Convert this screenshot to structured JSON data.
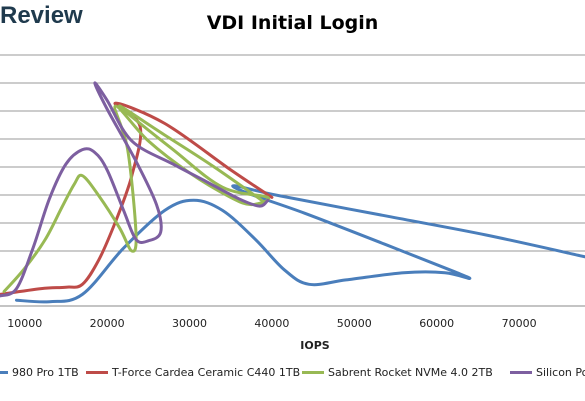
{
  "logo": {
    "text": "Review"
  },
  "chart_data": {
    "type": "line",
    "title": "VDI Initial Login",
    "xlabel": "IOPS",
    "ylabel": "",
    "xlim": [
      7000,
      78000
    ],
    "x_ticks": [
      10000,
      20000,
      30000,
      40000,
      50000,
      60000,
      70000
    ],
    "x_tick_labels": [
      "10000",
      "20000",
      "30000",
      "40000",
      "50000",
      "60000",
      "70000"
    ],
    "y_gridlines": 8,
    "grid": true,
    "legend_position": "bottom",
    "series": [
      {
        "name": "980 Pro 1TB",
        "color": "#4a7ebb",
        "points": [
          [
            9000,
            -0.5
          ],
          [
            13000,
            -0.55
          ],
          [
            17000,
            -0.3
          ],
          [
            22000,
            1.3
          ],
          [
            27000,
            2.6
          ],
          [
            30500,
            2.95
          ],
          [
            34000,
            2.6
          ],
          [
            38000,
            1.6
          ],
          [
            41500,
            0.55
          ],
          [
            44500,
            0.05
          ],
          [
            49000,
            0.2
          ],
          [
            56000,
            0.45
          ],
          [
            61000,
            0.45
          ],
          [
            64000,
            0.25
          ],
          [
            62000,
            0.5
          ],
          [
            54000,
            1.4
          ],
          [
            44000,
            2.5
          ],
          [
            37000,
            3.2
          ],
          [
            35500,
            3.45
          ],
          [
            41000,
            3.1
          ],
          [
            54000,
            2.4
          ],
          [
            66000,
            1.75
          ],
          [
            78000,
            1.0
          ]
        ]
      },
      {
        "name": "T-Force Cardea Ceramic C440 1TB",
        "color": "#be4b48",
        "points": [
          [
            7000,
            -0.3
          ],
          [
            12000,
            -0.1
          ],
          [
            15000,
            -0.05
          ],
          [
            17000,
            0.05
          ],
          [
            19000,
            0.9
          ],
          [
            21000,
            2.2
          ],
          [
            23000,
            3.8
          ],
          [
            24000,
            5.5
          ],
          [
            21000,
            6.3
          ],
          [
            27000,
            5.6
          ],
          [
            35000,
            4.0
          ],
          [
            40000,
            3.05
          ]
        ]
      },
      {
        "name": "Sabrent Rocket NVMe 4.0 2TB",
        "color": "#98b954",
        "points": [
          [
            7500,
            -0.2
          ],
          [
            10000,
            0.6
          ],
          [
            12500,
            1.6
          ],
          [
            14500,
            2.7
          ],
          [
            16000,
            3.5
          ],
          [
            17000,
            3.8
          ],
          [
            19000,
            3.1
          ],
          [
            21500,
            2.0
          ],
          [
            23000,
            1.2
          ],
          [
            23500,
            1.8
          ],
          [
            22500,
            4.7
          ],
          [
            21000,
            6.2
          ],
          [
            25000,
            5.0
          ],
          [
            30000,
            3.9
          ],
          [
            35000,
            3.05
          ],
          [
            37500,
            2.8
          ],
          [
            39500,
            3.05
          ],
          [
            34000,
            3.4
          ],
          [
            28000,
            4.7
          ],
          [
            21500,
            6.2
          ],
          [
            27000,
            5.2
          ],
          [
            33000,
            4.1
          ],
          [
            39000,
            2.9
          ]
        ]
      },
      {
        "name": "Silicon Power",
        "color": "#7d5fa0",
        "points": [
          [
            7000,
            -0.35
          ],
          [
            9000,
            -0.1
          ],
          [
            11000,
            1.3
          ],
          [
            13000,
            3.0
          ],
          [
            15000,
            4.2
          ],
          [
            17000,
            4.7
          ],
          [
            18500,
            4.6
          ],
          [
            20000,
            4.0
          ],
          [
            22000,
            2.6
          ],
          [
            23500,
            1.6
          ],
          [
            25000,
            1.55
          ],
          [
            26500,
            1.85
          ],
          [
            26000,
            2.8
          ],
          [
            23500,
            4.3
          ],
          [
            20000,
            6.1
          ],
          [
            18500,
            7.0
          ],
          [
            20000,
            6.4
          ],
          [
            23000,
            5.0
          ],
          [
            28000,
            4.2
          ],
          [
            32000,
            3.6
          ],
          [
            36000,
            3.0
          ],
          [
            38500,
            2.75
          ],
          [
            39500,
            2.95
          ]
        ]
      }
    ]
  }
}
